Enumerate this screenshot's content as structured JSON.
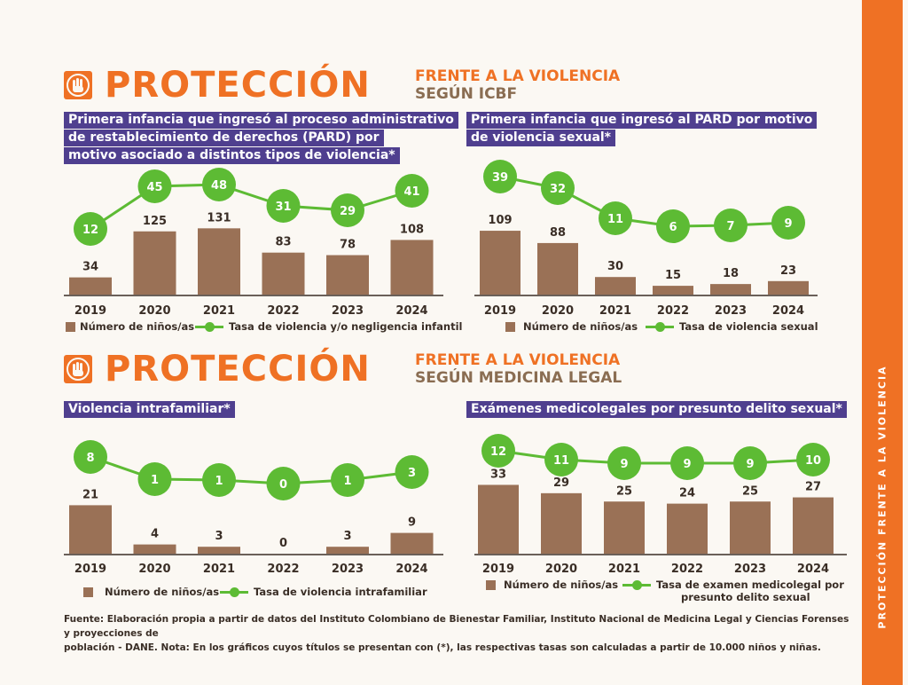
{
  "sidebar": {
    "text": "PROTECCIÓN FRENTE A LA VIOLENCIA"
  },
  "sections": [
    {
      "title": "PROTECCIÓN",
      "subtitle_line1": "FRENTE A LA VIOLENCIA",
      "subtitle_line2": "SEGÚN ICBF"
    },
    {
      "title": "PROTECCIÓN",
      "subtitle_line1": "FRENTE A LA VIOLENCIA",
      "subtitle_line2": "SEGÚN MEDICINA LEGAL"
    }
  ],
  "colors": {
    "orange": "#ef7124",
    "purple": "#4f3f8f",
    "bar": "#9a7156",
    "green": "#5dbb34",
    "brown_text": "#8a6d52"
  },
  "chart_data": [
    {
      "type": "bar",
      "title_lines": [
        "Primera infancia que ingresó al proceso administrativo",
        "de restablecimiento de derechos (PARD) por",
        "motivo asociado a distintos tipos de  violencia*"
      ],
      "categories": [
        "2019",
        "2020",
        "2021",
        "2022",
        "2023",
        "2024"
      ],
      "series": [
        {
          "name": "Número de niños/as",
          "type": "bar",
          "values": [
            34,
            125,
            131,
            83,
            78,
            108
          ]
        },
        {
          "name": "Tasa de violencia y/o negligencia infantil",
          "type": "line",
          "values": [
            12,
            45,
            48,
            31,
            29,
            41
          ]
        }
      ],
      "legend": "bottom"
    },
    {
      "type": "bar",
      "title_lines": [
        "Primera infancia que ingresó al PARD por motivo",
        "de violencia sexual*"
      ],
      "categories": [
        "2019",
        "2020",
        "2021",
        "2022",
        "2023",
        "2024"
      ],
      "series": [
        {
          "name": "Número de niños/as",
          "type": "bar",
          "values": [
            109,
            88,
            30,
            15,
            18,
            23
          ]
        },
        {
          "name": "Tasa de violencia sexual",
          "type": "line",
          "values": [
            39,
            32,
            11,
            6,
            7,
            9
          ]
        }
      ],
      "legend": "bottom"
    },
    {
      "type": "bar",
      "title_lines": [
        "Violencia intrafamiliar*"
      ],
      "categories": [
        "2019",
        "2020",
        "2021",
        "2022",
        "2023",
        "2024"
      ],
      "series": [
        {
          "name": "Número de niños/as",
          "type": "bar",
          "values": [
            21,
            4,
            3,
            0,
            3,
            9
          ]
        },
        {
          "name": "Tasa de violencia intrafamiliar",
          "type": "line",
          "values": [
            8,
            1,
            1,
            0,
            1,
            3
          ]
        }
      ],
      "legend": "bottom"
    },
    {
      "type": "bar",
      "title_lines": [
        "Exámenes medicolegales por presunto delito sexual*"
      ],
      "categories": [
        "2019",
        "2020",
        "2021",
        "2022",
        "2023",
        "2024"
      ],
      "series": [
        {
          "name": "Número de niños/as",
          "type": "bar",
          "values": [
            33,
            29,
            25,
            24,
            25,
            27
          ]
        },
        {
          "name": "Tasa de examen medicolegal por presunto delito sexual",
          "name_lines": [
            "Tasa de examen medicolegal por",
            "presunto delito sexual"
          ],
          "type": "line",
          "values": [
            12,
            11,
            9,
            9,
            9,
            10
          ]
        }
      ],
      "legend": "bottom"
    }
  ],
  "footnote": {
    "line1": "Fuente: Elaboración propia a partir de datos del Instituto Colombiano de Bienestar Familiar, Instituto Nacional de Medicina Legal y Ciencias Forenses y proyecciones de",
    "line2": "población - DANE.  Nota: En los gráficos cuyos títulos se presentan con (*), las respectivas tasas son calculadas a partir de 10.000 niños y niñas."
  }
}
